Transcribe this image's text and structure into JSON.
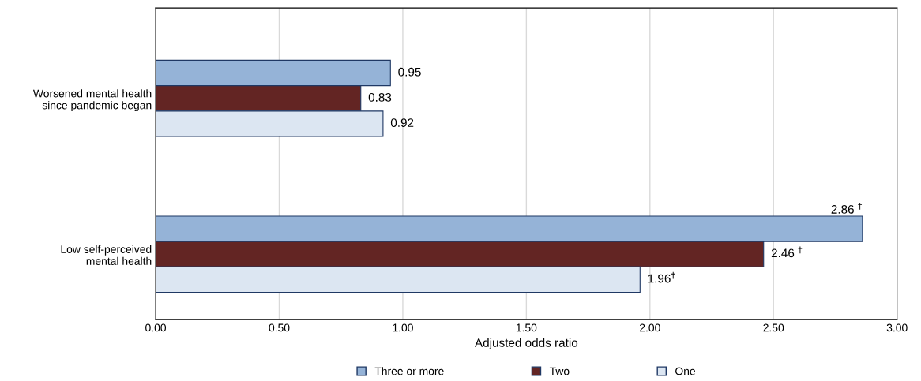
{
  "chart_data": {
    "type": "bar",
    "orientation": "horizontal",
    "xlabel": "Adjusted odds ratio",
    "categories": [
      "Worsened mental health\nsince pandemic began",
      "Low self-perceived\nmental health"
    ],
    "series": [
      {
        "name": "Three or more",
        "color": "#95b3d7",
        "values": [
          0.95,
          2.86
        ],
        "value_labels": [
          "0.95",
          "2.86 $^{†}$"
        ]
      },
      {
        "name": "Two",
        "color": "#632523",
        "values": [
          0.83,
          2.46
        ],
        "value_labels": [
          "0.83",
          "2.46 $^{†}$"
        ]
      },
      {
        "name": "One",
        "color": "#dce6f2",
        "values": [
          0.92,
          1.96
        ],
        "value_labels": [
          "0.92",
          "1.96$^{†}$"
        ]
      }
    ],
    "xlim": [
      0,
      3
    ],
    "xticks": [
      {
        "value": 0,
        "label": "0.00"
      },
      {
        "value": 0.5,
        "label": "0.50"
      },
      {
        "value": 1,
        "label": "1.00"
      },
      {
        "value": 1.5,
        "label": "1.50"
      },
      {
        "value": 2,
        "label": "2.00"
      },
      {
        "value": 2.5,
        "label": "2.50"
      },
      {
        "value": 3,
        "label": "3.00"
      }
    ],
    "grid": "x",
    "legend": "bottom"
  }
}
